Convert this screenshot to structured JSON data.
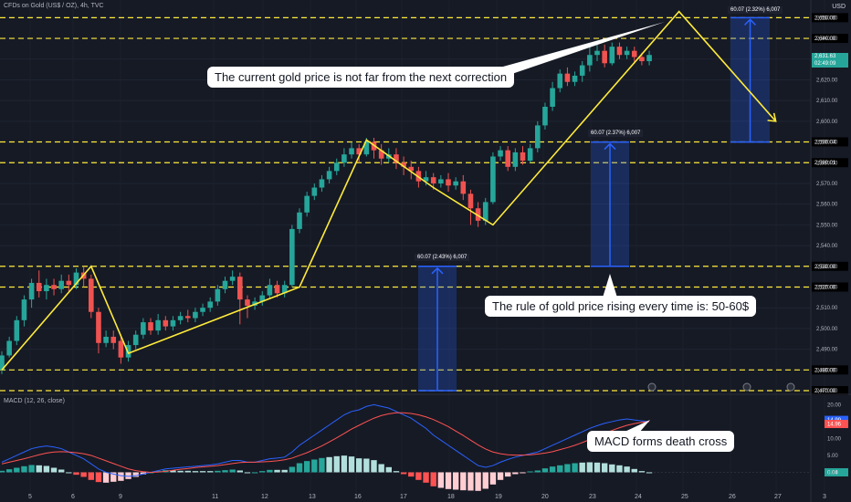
{
  "header": {
    "symbol": "CFDs on Gold (US$ / OZ), 4h, TVC",
    "currency": "USD",
    "macd_label": "MACD (12, 26, close)"
  },
  "price_tag": {
    "price": "2,631.63",
    "countdown": "02:49:09"
  },
  "annotations": {
    "current": "The current gold price is not far from the next correction",
    "rule": "The rule of gold price rising every time is: 50-60$",
    "macd": "MACD forms death cross"
  },
  "measure_labels": [
    "60.07 (2.43%) 6,007",
    "60.07 (2.37%) 6,007",
    "60.07 (2.32%) 6,007"
  ],
  "colors": {
    "up": "#26a69a",
    "down": "#ef5350",
    "pattern": "#ffeb3b",
    "measure": "#2962ff",
    "macd": "#2962ff",
    "signal": "#ff5252"
  },
  "chart_data": [
    {
      "type": "candlestick",
      "ylim": [
        2470,
        2655
      ],
      "y_ticks": [
        "2,650.00",
        "2,640.00",
        "2,630.00",
        "2,620.00",
        "2,610.00",
        "2,600.00",
        "2,590.00",
        "2,580.00",
        "2,570.00",
        "2,560.00",
        "2,550.00",
        "2,540.00",
        "2,530.00",
        "2,520.00",
        "2,510.00",
        "2,500.00",
        "2,490.00",
        "2,480.00",
        "2,470.00"
      ],
      "x_labels": [
        "5",
        "6",
        "9",
        "11",
        "12",
        "13",
        "16",
        "17",
        "18",
        "19",
        "20",
        "23",
        "24",
        "25",
        "26",
        "27",
        "3"
      ],
      "levels": [
        2650,
        2640,
        2590.04,
        2580.01,
        2530,
        2520,
        2480,
        2470
      ],
      "level_labels": [
        "2,650.00",
        "2,640.00",
        "2,590.04",
        "2,580.01",
        "2,530.00",
        "2,520.00",
        "2,480.00",
        "2,470.00"
      ],
      "zigzag": [
        [
          0,
          2480
        ],
        [
          12,
          2530
        ],
        [
          17,
          2488
        ],
        [
          40,
          2520
        ],
        [
          49,
          2591
        ],
        [
          58,
          2568
        ],
        [
          66,
          2550
        ],
        [
          91,
          2653
        ],
        [
          104,
          2600
        ]
      ],
      "measures": [
        {
          "start": 2470,
          "end": 2530,
          "label": 0
        },
        {
          "start": 2530,
          "end": 2590,
          "label": 1
        },
        {
          "start": 2590,
          "end": 2650,
          "label": 2
        }
      ],
      "candles": [
        [
          2480,
          2487,
          2478,
          2489
        ],
        [
          2487,
          2494,
          2486,
          2496
        ],
        [
          2494,
          2504,
          2492,
          2506
        ],
        [
          2504,
          2514,
          2501,
          2516
        ],
        [
          2514,
          2522,
          2510,
          2524
        ],
        [
          2522,
          2518,
          2515,
          2528
        ],
        [
          2518,
          2521,
          2514,
          2524
        ],
        [
          2521,
          2519,
          2516,
          2524
        ],
        [
          2519,
          2523,
          2517,
          2526
        ],
        [
          2523,
          2521,
          2518,
          2526
        ],
        [
          2521,
          2527,
          2519,
          2529
        ],
        [
          2527,
          2524,
          2520,
          2530
        ],
        [
          2524,
          2508,
          2505,
          2526
        ],
        [
          2508,
          2493,
          2488,
          2510
        ],
        [
          2493,
          2496,
          2491,
          2499
        ],
        [
          2496,
          2493,
          2490,
          2499
        ],
        [
          2494,
          2486,
          2483,
          2497
        ],
        [
          2486,
          2492,
          2484,
          2494
        ],
        [
          2492,
          2497,
          2490,
          2499
        ],
        [
          2497,
          2503,
          2495,
          2505
        ],
        [
          2503,
          2499,
          2497,
          2505
        ],
        [
          2499,
          2504,
          2497,
          2507
        ],
        [
          2504,
          2501,
          2499,
          2506
        ],
        [
          2501,
          2504,
          2499,
          2506
        ],
        [
          2504,
          2506,
          2502,
          2508
        ],
        [
          2506,
          2505,
          2503,
          2509
        ],
        [
          2505,
          2508,
          2503,
          2510
        ],
        [
          2508,
          2510,
          2506,
          2512
        ],
        [
          2510,
          2513,
          2508,
          2515
        ],
        [
          2513,
          2519,
          2511,
          2521
        ],
        [
          2519,
          2523,
          2517,
          2525
        ],
        [
          2523,
          2525,
          2521,
          2528
        ],
        [
          2525,
          2514,
          2502,
          2527
        ],
        [
          2514,
          2511,
          2505,
          2516
        ],
        [
          2511,
          2513,
          2509,
          2515
        ],
        [
          2513,
          2516,
          2511,
          2518
        ],
        [
          2516,
          2521,
          2514,
          2524
        ],
        [
          2521,
          2517,
          2515,
          2523
        ],
        [
          2517,
          2521,
          2515,
          2523
        ],
        [
          2521,
          2548,
          2520,
          2550
        ],
        [
          2548,
          2556,
          2546,
          2558
        ],
        [
          2556,
          2564,
          2554,
          2566
        ],
        [
          2564,
          2568,
          2562,
          2570
        ],
        [
          2568,
          2572,
          2566,
          2574
        ],
        [
          2572,
          2576,
          2570,
          2578
        ],
        [
          2576,
          2580,
          2574,
          2582
        ],
        [
          2580,
          2584,
          2578,
          2587
        ],
        [
          2584,
          2587,
          2582,
          2590
        ],
        [
          2587,
          2584,
          2580,
          2589
        ],
        [
          2584,
          2590,
          2583,
          2592
        ],
        [
          2590,
          2586,
          2582,
          2592
        ],
        [
          2586,
          2582,
          2579,
          2589
        ],
        [
          2582,
          2584,
          2580,
          2587
        ],
        [
          2584,
          2580,
          2577,
          2587
        ],
        [
          2580,
          2578,
          2574,
          2583
        ],
        [
          2578,
          2576,
          2572,
          2581
        ],
        [
          2576,
          2571,
          2568,
          2578
        ],
        [
          2571,
          2573,
          2569,
          2576
        ],
        [
          2573,
          2570,
          2567,
          2575
        ],
        [
          2570,
          2572,
          2568,
          2574
        ],
        [
          2572,
          2569,
          2566,
          2575
        ],
        [
          2569,
          2571,
          2567,
          2573
        ],
        [
          2571,
          2565,
          2562,
          2574
        ],
        [
          2565,
          2558,
          2550,
          2567
        ],
        [
          2558,
          2552,
          2549,
          2561
        ],
        [
          2552,
          2561,
          2550,
          2563
        ],
        [
          2561,
          2583,
          2560,
          2585
        ],
        [
          2583,
          2586,
          2581,
          2588
        ],
        [
          2586,
          2578,
          2576,
          2588
        ],
        [
          2578,
          2585,
          2576,
          2587
        ],
        [
          2585,
          2581,
          2579,
          2588
        ],
        [
          2581,
          2587,
          2580,
          2589
        ],
        [
          2587,
          2598,
          2585,
          2600
        ],
        [
          2598,
          2607,
          2596,
          2609
        ],
        [
          2607,
          2616,
          2605,
          2619
        ],
        [
          2616,
          2623,
          2614,
          2625
        ],
        [
          2623,
          2619,
          2617,
          2626
        ],
        [
          2619,
          2622,
          2617,
          2624
        ],
        [
          2622,
          2627,
          2619,
          2629
        ],
        [
          2627,
          2632,
          2624,
          2636
        ],
        [
          2632,
          2634,
          2629,
          2639
        ],
        [
          2634,
          2628,
          2626,
          2637
        ],
        [
          2628,
          2636,
          2627,
          2638
        ],
        [
          2636,
          2632,
          2630,
          2638
        ],
        [
          2632,
          2634,
          2630,
          2636
        ],
        [
          2634,
          2631,
          2628,
          2636
        ],
        [
          2631,
          2629,
          2627,
          2633
        ],
        [
          2629,
          2632,
          2627,
          2634
        ]
      ]
    },
    {
      "type": "macd",
      "ylim": [
        -5,
        22
      ],
      "y_ticks": [
        "20.00",
        "10.00",
        "5.00",
        "0.00"
      ],
      "macd_value": "14.99",
      "signal_value": "14.96",
      "hist_value": "0.04",
      "macd": [
        3,
        4,
        5,
        6,
        7,
        7.5,
        7.8,
        7.5,
        7,
        6,
        5,
        4,
        2.5,
        1,
        0,
        -0.5,
        -1,
        -1.2,
        -1,
        -0.5,
        0,
        0.5,
        1,
        1.2,
        1.4,
        1.6,
        1.8,
        2,
        2.2,
        2.5,
        3,
        3.5,
        3.5,
        3,
        3,
        3.5,
        4,
        4.2,
        4.5,
        6,
        8,
        9.5,
        11,
        12.5,
        14,
        15.5,
        17,
        18,
        18.5,
        19.5,
        20,
        19.5,
        19,
        18,
        17,
        16,
        14.5,
        13,
        11,
        9.5,
        8,
        6.5,
        5,
        3.5,
        2,
        1.5,
        2,
        3,
        3.8,
        4.5,
        5,
        5.5,
        6,
        7,
        8,
        9,
        10,
        11,
        12,
        13,
        13.8,
        14.5,
        15,
        15.5,
        15.8,
        15.5,
        15.2,
        15
      ],
      "signal": [
        2.5,
        3,
        3.5,
        4,
        4.6,
        5.2,
        5.7,
        6,
        6.1,
        6,
        5.8,
        5.5,
        5,
        4.2,
        3.4,
        2.6,
        1.8,
        1,
        0.5,
        0.2,
        0,
        0.1,
        0.3,
        0.6,
        0.9,
        1.1,
        1.4,
        1.6,
        1.8,
        2,
        2.3,
        2.6,
        2.9,
        3,
        3,
        3.1,
        3.2,
        3.4,
        3.7,
        4.2,
        5,
        5.8,
        6.8,
        7.8,
        9,
        10.2,
        11.5,
        12.8,
        13.9,
        15,
        16,
        16.8,
        17.3,
        17.6,
        17.6,
        17.4,
        17,
        16.4,
        15.6,
        14.6,
        13.5,
        12.2,
        10.9,
        9.5,
        8.1,
        6.9,
        6,
        5.5,
        5.2,
        5.1,
        5.1,
        5.2,
        5.4,
        5.7,
        6.1,
        6.7,
        7.3,
        8,
        8.8,
        9.7,
        10.6,
        11.5,
        12.4,
        13.2,
        13.9,
        14.4,
        14.8,
        15
      ]
    }
  ]
}
